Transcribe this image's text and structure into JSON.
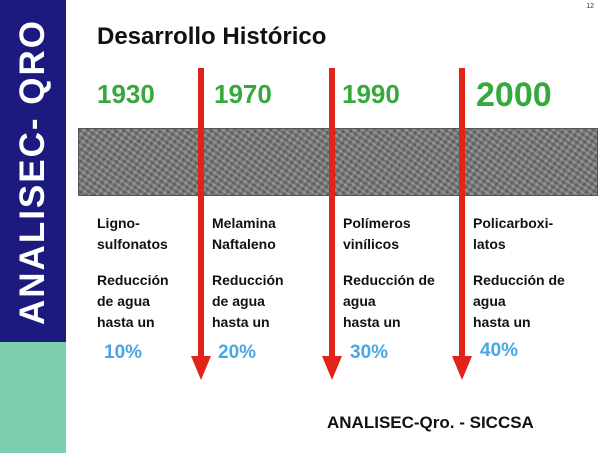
{
  "sidebar": {
    "label": "ANALISEC- QRO",
    "top_color": "#1c1a7f",
    "bottom_color": "#7ccfae"
  },
  "slide_number": "12",
  "title": "Desarrollo Histórico",
  "accent_colors": {
    "year": "#36a93c",
    "arrow": "#e2231a",
    "percent": "#49a7e6"
  },
  "timeline": [
    {
      "year": "1930",
      "line1": "Ligno-",
      "line2": "sulfonatos",
      "r1": "Reducción",
      "r2": "de agua",
      "r3": "hasta un",
      "percent": "10%"
    },
    {
      "year": "1970",
      "line1": "Melamina",
      "line2": "Naftaleno",
      "r1": "Reducción",
      "r2": "de agua",
      "r3": "hasta un",
      "percent": "20%"
    },
    {
      "year": "1990",
      "line1": "Polímeros",
      "line2": "vinílicos",
      "r1": "Reducción de",
      "r2": "agua",
      "r3": "hasta un",
      "percent": "30%"
    },
    {
      "year": "2000",
      "line1": "Policarboxi-",
      "line2": "latos",
      "r1": "Reducción de",
      "r2": "agua",
      "r3": "hasta un",
      "percent": "40%"
    }
  ],
  "footer": "ANALISEC-Qro. - SICCSA"
}
